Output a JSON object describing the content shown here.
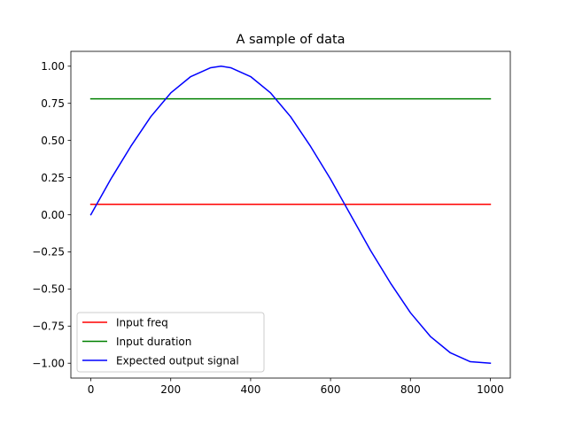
{
  "chart_data": {
    "type": "line",
    "title": "A sample of data",
    "xlabel": "",
    "ylabel": "",
    "xlim": [
      -50,
      1050
    ],
    "ylim": [
      -1.1,
      1.1
    ],
    "xticks": [
      0,
      200,
      400,
      600,
      800,
      1000
    ],
    "xtick_labels": [
      "0",
      "200",
      "400",
      "600",
      "800",
      "1000"
    ],
    "yticks": [
      1.0,
      0.75,
      0.5,
      0.25,
      0.0,
      -0.25,
      -0.5,
      -0.75,
      -1.0
    ],
    "ytick_labels": [
      "1.00",
      "0.75",
      "0.50",
      "0.25",
      "0.00",
      "−0.25",
      "−0.50",
      "−0.75",
      "−1.00"
    ],
    "grid": false,
    "legend_position": "lower-left",
    "series": [
      {
        "name": "Input freq",
        "color": "#ff0000",
        "x": [
          0,
          1000
        ],
        "y": [
          0.07,
          0.07
        ]
      },
      {
        "name": "Input duration",
        "color": "#008000",
        "x": [
          0,
          1000
        ],
        "y": [
          0.78,
          0.78
        ]
      },
      {
        "name": "Expected output signal",
        "color": "#0000ff",
        "x": [
          0,
          50,
          100,
          150,
          200,
          250,
          300,
          326,
          350,
          400,
          450,
          500,
          550,
          600,
          650,
          700,
          750,
          800,
          850,
          900,
          950,
          1000
        ],
        "y": [
          0.0,
          0.24,
          0.46,
          0.66,
          0.82,
          0.93,
          0.99,
          1.0,
          0.99,
          0.93,
          0.82,
          0.66,
          0.46,
          0.24,
          0.0,
          -0.24,
          -0.46,
          -0.66,
          -0.82,
          -0.93,
          -0.99,
          -1.0
        ]
      }
    ]
  }
}
